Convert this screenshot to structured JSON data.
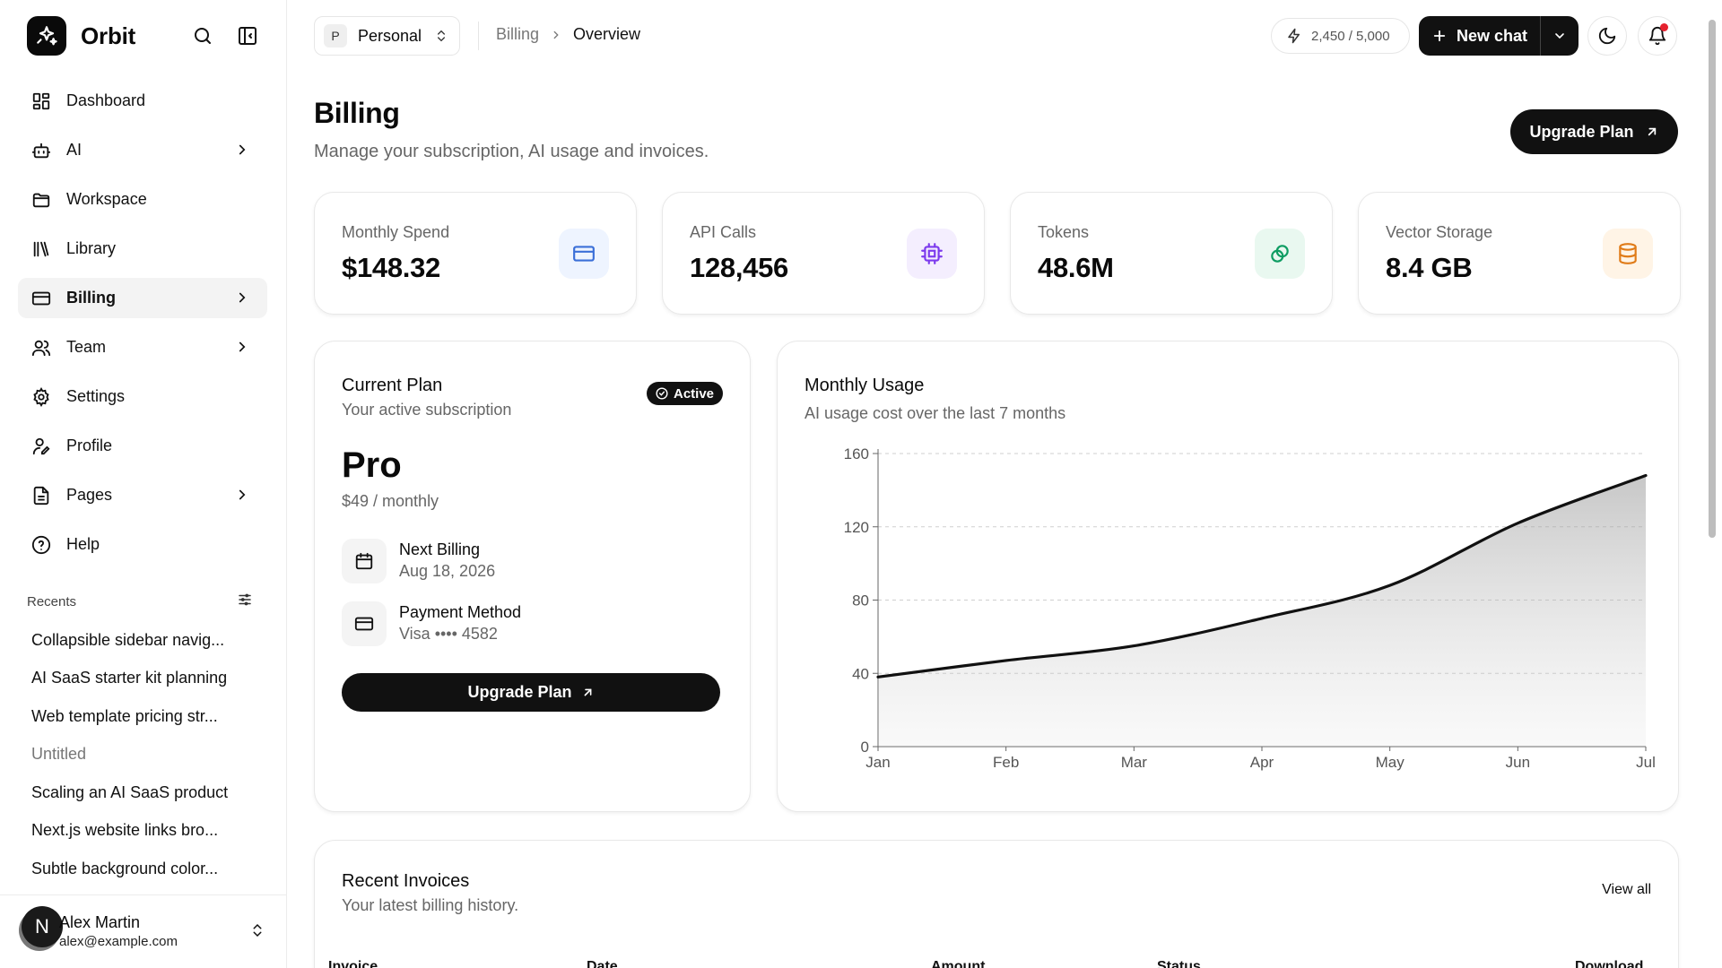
{
  "brand": {
    "name": "Orbit"
  },
  "sidebar": {
    "items": [
      {
        "label": "Dashboard",
        "icon": "dashboard-icon",
        "active": false,
        "chevron": false
      },
      {
        "label": "AI",
        "icon": "bot-icon",
        "active": false,
        "chevron": true
      },
      {
        "label": "Workspace",
        "icon": "folder-icon",
        "active": false,
        "chevron": false
      },
      {
        "label": "Library",
        "icon": "library-icon",
        "active": false,
        "chevron": false
      },
      {
        "label": "Billing",
        "icon": "credit-card-icon",
        "active": true,
        "chevron": true
      },
      {
        "label": "Team",
        "icon": "users-icon",
        "active": false,
        "chevron": true
      },
      {
        "label": "Settings",
        "icon": "gear-icon",
        "active": false,
        "chevron": false
      },
      {
        "label": "Profile",
        "icon": "user-pen-icon",
        "active": false,
        "chevron": false
      },
      {
        "label": "Pages",
        "icon": "file-icon",
        "active": false,
        "chevron": true
      },
      {
        "label": "Help",
        "icon": "help-circle-icon",
        "active": false,
        "chevron": false
      }
    ],
    "recents_label": "Recents",
    "recents": [
      {
        "label": "Collapsible sidebar navig...",
        "muted": false
      },
      {
        "label": "AI SaaS starter kit planning",
        "muted": false
      },
      {
        "label": "Web template pricing str...",
        "muted": false
      },
      {
        "label": "Untitled",
        "muted": true
      },
      {
        "label": "Scaling an AI SaaS product",
        "muted": false
      },
      {
        "label": "Next.js website links bro...",
        "muted": false
      },
      {
        "label": "Subtle background color...",
        "muted": false
      }
    ],
    "user": {
      "initial": "N",
      "name": "Alex Martin",
      "email": "alex@example.com"
    }
  },
  "header": {
    "workspace": {
      "badge": "P",
      "name": "Personal"
    },
    "breadcrumb": {
      "parent": "Billing",
      "current": "Overview"
    },
    "credits": "2,450 / 5,000",
    "new_chat_label": "New chat"
  },
  "page": {
    "title": "Billing",
    "subtitle": "Manage your subscription, AI usage and invoices.",
    "upgrade_label": "Upgrade Plan"
  },
  "stats": [
    {
      "label": "Monthly Spend",
      "value": "$148.32",
      "icon": "credit-card-icon",
      "bg": "#eef4ff",
      "fg": "#3b6fd8"
    },
    {
      "label": "API Calls",
      "value": "128,456",
      "icon": "cpu-icon",
      "bg": "#f4eefe",
      "fg": "#7c3aed"
    },
    {
      "label": "Tokens",
      "value": "48.6M",
      "icon": "link-icon",
      "bg": "#e9f8f0",
      "fg": "#0f9d63"
    },
    {
      "label": "Vector Storage",
      "value": "8.4 GB",
      "icon": "database-icon",
      "bg": "#fff4e6",
      "fg": "#e07b18"
    }
  ],
  "plan": {
    "title": "Current Plan",
    "subtitle": "Your active subscription",
    "status": "Active",
    "name": "Pro",
    "price": "$49 / monthly",
    "next_billing_label": "Next Billing",
    "next_billing_value": "Aug 18, 2026",
    "payment_label": "Payment Method",
    "payment_value": "Visa •••• 4582",
    "upgrade_label": "Upgrade Plan"
  },
  "chart_data": {
    "type": "area",
    "title": "Monthly Usage",
    "subtitle": "AI usage cost over the last 7 months",
    "categories": [
      "Jan",
      "Feb",
      "Mar",
      "Apr",
      "May",
      "Jun",
      "Jul"
    ],
    "values": [
      38,
      47,
      55,
      70,
      88,
      122,
      148
    ],
    "ylim": [
      0,
      160
    ],
    "yticks": [
      0,
      40,
      80,
      120,
      160
    ],
    "grid": true,
    "xlabel": "",
    "ylabel": ""
  },
  "invoices": {
    "title": "Recent Invoices",
    "subtitle": "Your latest billing history.",
    "view_all_label": "View all",
    "columns": [
      "Invoice",
      "Date",
      "Amount",
      "Status",
      "Download"
    ]
  }
}
